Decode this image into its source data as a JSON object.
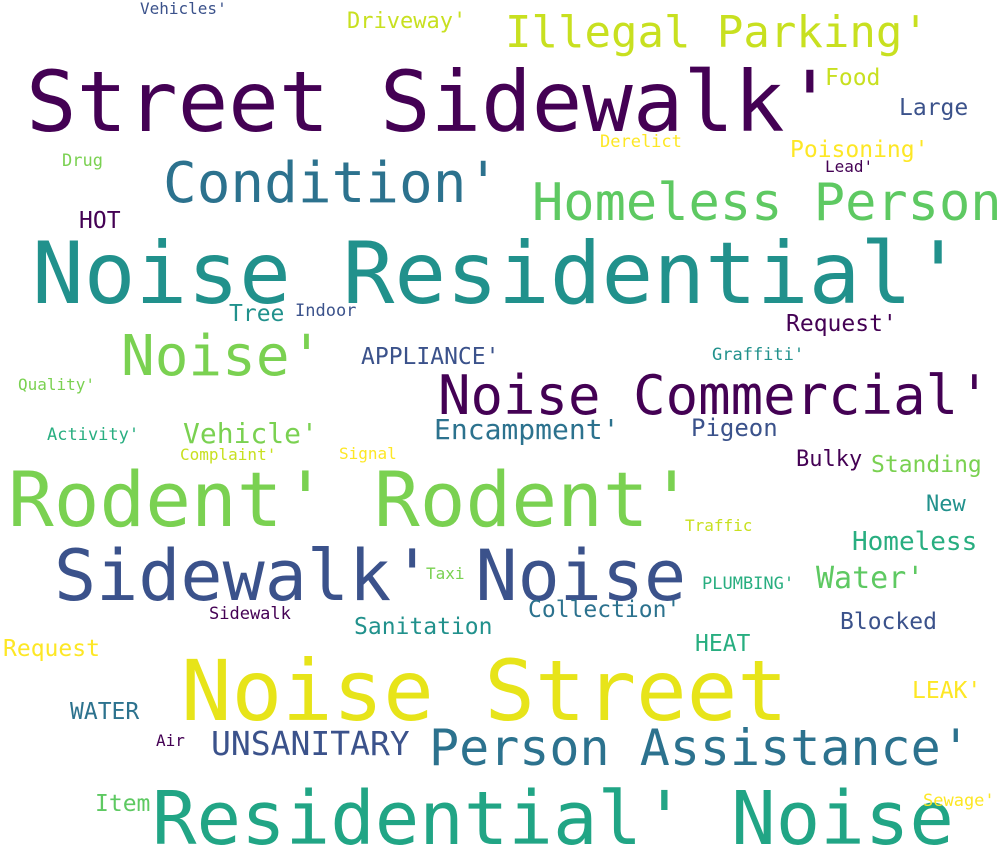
{
  "words": [
    {
      "text": "Vehicles'",
      "color": "#3b528b"
    },
    {
      "text": "Driveway'",
      "color": "#c8e020"
    },
    {
      "text": "Illegal Parking'",
      "color": "#c8e020"
    },
    {
      "text": "Street Sidewalk'",
      "color": "#440154"
    },
    {
      "text": "Food",
      "color": "#c8e020"
    },
    {
      "text": "Large",
      "color": "#3b528b"
    },
    {
      "text": "Derelict",
      "color": "#fde725"
    },
    {
      "text": "Poisoning'",
      "color": "#fde725"
    },
    {
      "text": "Lead'",
      "color": "#440154"
    },
    {
      "text": "Drug",
      "color": "#7ad151"
    },
    {
      "text": "Condition'",
      "color": "#2c728e"
    },
    {
      "text": "Homeless Person",
      "color": "#5ec962"
    },
    {
      "text": "HOT",
      "color": "#440154"
    },
    {
      "text": "Noise Residential'",
      "color": "#21918c"
    },
    {
      "text": "Tree",
      "color": "#21918c"
    },
    {
      "text": "Indoor",
      "color": "#3b528b"
    },
    {
      "text": "Request'",
      "color": "#440154"
    },
    {
      "text": "Noise'",
      "color": "#7ad151"
    },
    {
      "text": "APPLIANCE'",
      "color": "#3b528b"
    },
    {
      "text": "Graffiti'",
      "color": "#21918c"
    },
    {
      "text": "Quality'",
      "color": "#7ad151"
    },
    {
      "text": "Noise Commercial'",
      "color": "#440154"
    },
    {
      "text": "Activity'",
      "color": "#28ae80"
    },
    {
      "text": "Vehicle'",
      "color": "#7ad151"
    },
    {
      "text": "Encampment'",
      "color": "#2c728e"
    },
    {
      "text": "Pigeon",
      "color": "#3b528b"
    },
    {
      "text": "Complaint'",
      "color": "#c8e020"
    },
    {
      "text": "Signal",
      "color": "#fde725"
    },
    {
      "text": "Bulky",
      "color": "#440154"
    },
    {
      "text": "Standing",
      "color": "#7ad151"
    },
    {
      "text": "Rodent' Rodent'",
      "color": "#7ad151"
    },
    {
      "text": "New",
      "color": "#21918c"
    },
    {
      "text": "Traffic",
      "color": "#c8e020"
    },
    {
      "text": "Homeless",
      "color": "#28ae80"
    },
    {
      "text": "Sidewalk' Noise",
      "color": "#3b528b"
    },
    {
      "text": "Taxi",
      "color": "#7ad151"
    },
    {
      "text": "PLUMBING'",
      "color": "#28ae80"
    },
    {
      "text": "Water'",
      "color": "#5ec962"
    },
    {
      "text": "Sidewalk",
      "color": "#440154"
    },
    {
      "text": "Collection'",
      "color": "#2c728e"
    },
    {
      "text": "Sanitation",
      "color": "#21918c"
    },
    {
      "text": "Blocked",
      "color": "#3b528b"
    },
    {
      "text": "Request",
      "color": "#fde725"
    },
    {
      "text": "HEAT",
      "color": "#28ae80"
    },
    {
      "text": "Noise Street",
      "color": "#e7e419"
    },
    {
      "text": "LEAK'",
      "color": "#fde725"
    },
    {
      "text": "WATER",
      "color": "#2c728e"
    },
    {
      "text": "UNSANITARY",
      "color": "#3b528b"
    },
    {
      "text": "Person Assistance'",
      "color": "#2c728e"
    },
    {
      "text": "Air",
      "color": "#440154"
    },
    {
      "text": "Item",
      "color": "#5ec962"
    },
    {
      "text": "Residential' Noise",
      "color": "#21a585"
    },
    {
      "text": "Sewage'",
      "color": "#fde725"
    }
  ]
}
